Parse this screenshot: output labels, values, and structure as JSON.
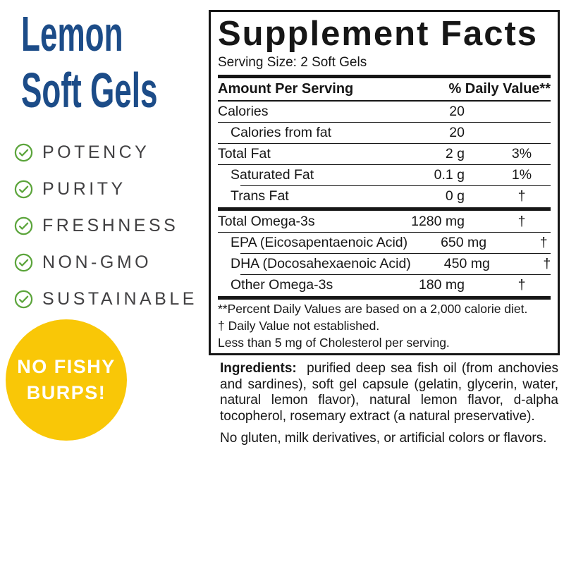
{
  "product": {
    "title_line1": "Lemon",
    "title_line2": "Soft Gels"
  },
  "features": [
    "POTENCY",
    "PURITY",
    "FRESHNESS",
    "NON-GMO",
    "SUSTAINABLE"
  ],
  "badge": {
    "line1": "NO FISHY",
    "line2": "BURPS!"
  },
  "supplement_facts": {
    "title": "Supplement Facts",
    "serving_size": "Serving Size: 2 Soft Gels",
    "header": {
      "left": "Amount Per Serving",
      "right": "% Daily Value**"
    },
    "rows": [
      {
        "label": "Calories",
        "amount": "20",
        "dv": "",
        "indent": false,
        "sep": "full"
      },
      {
        "label": "Calories from fat",
        "amount": "20",
        "dv": "",
        "indent": true,
        "sep": "full"
      },
      {
        "label": "Total Fat",
        "amount": "2 g",
        "dv": "3%",
        "indent": false,
        "sep": "full"
      },
      {
        "label": "Saturated Fat",
        "amount": "0.1 g",
        "dv": "1%",
        "indent": true,
        "sep": "indent"
      },
      {
        "label": "Trans Fat",
        "amount": "0 g",
        "dv": "†",
        "indent": true,
        "sep": "thick"
      },
      {
        "label": "Total Omega-3s",
        "amount": "1280 mg",
        "dv": "†",
        "indent": false,
        "sep": "full"
      },
      {
        "label": "EPA (Eicosapentaenoic Acid)",
        "amount": "650 mg",
        "dv": "†",
        "indent": true,
        "sep": "indent"
      },
      {
        "label": "DHA (Docosahexaenoic Acid)",
        "amount": "450 mg",
        "dv": "†",
        "indent": true,
        "sep": "indent"
      },
      {
        "label": "Other Omega-3s",
        "amount": "180 mg",
        "dv": "†",
        "indent": true,
        "sep": "thick"
      }
    ],
    "footnotes": [
      "**Percent Daily Values are based on a 2,000 calorie diet.",
      "†  Daily Value not established.",
      "Less than 5 mg of Cholesterol per serving."
    ]
  },
  "ingredients": {
    "label": "Ingredients:",
    "text": "purified deep sea fish oil (from anchovies and sardines), soft gel capsule (gelatin, glycerin, water, natural lemon flavor), natural lemon flavor, d-alpha tocopherol, rosemary extract (a natural preservative).",
    "allergen": "No gluten, milk derivatives, or artificial colors or flavors."
  },
  "colors": {
    "brand_blue": "#1C4C88",
    "check_green": "#5CA53C",
    "badge_yellow": "#F9C707",
    "ink": "#161616",
    "feature_text": "#414042"
  }
}
